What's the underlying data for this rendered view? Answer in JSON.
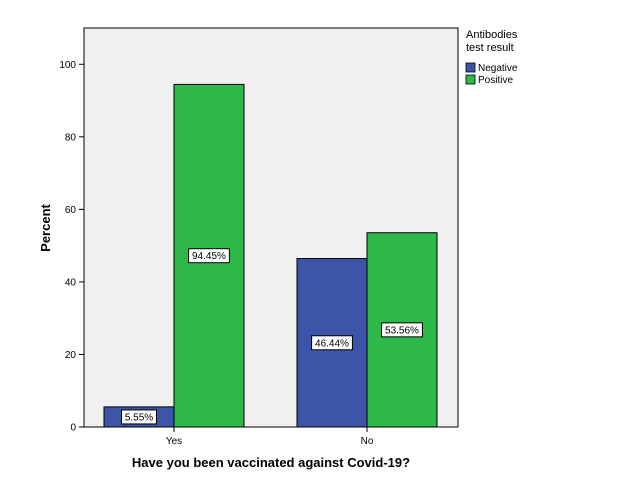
{
  "chart_data": {
    "type": "bar",
    "categories": [
      "Yes",
      "No"
    ],
    "series": [
      {
        "name": "Negative",
        "color": "#3d55a8",
        "values": [
          5.55,
          46.44
        ],
        "labels": [
          "5.55%",
          "46.44%"
        ]
      },
      {
        "name": "Positive",
        "color": "#2eb84a",
        "values": [
          94.45,
          53.56
        ],
        "labels": [
          "94.45%",
          "53.56%"
        ]
      }
    ],
    "title": "",
    "xlabel": "Have you been vaccinated against Covid-19?",
    "ylabel": "Percent",
    "ylim": [
      0,
      110
    ],
    "yticks": [
      0,
      20,
      40,
      60,
      80,
      100
    ],
    "ytick_labels": [
      "0",
      "20",
      "40",
      "60",
      "80",
      "100"
    ],
    "legend": {
      "title_line1": "Antibodies",
      "title_line2": "test result",
      "position": "right"
    },
    "plot_background": "#f0f0f0",
    "grid": false
  }
}
